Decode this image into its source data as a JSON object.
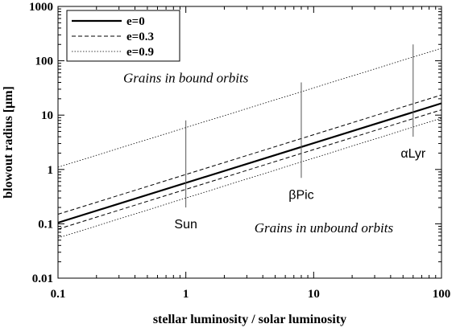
{
  "chart_data": {
    "type": "line",
    "xlabel": "stellar luminosity / solar luminosity",
    "ylabel": "blowout radius [μm]",
    "x_scale": "log",
    "y_scale": "log",
    "xlim": [
      0.1,
      100
    ],
    "ylim": [
      0.01,
      1000
    ],
    "x_ticks": [
      {
        "value": 0.1,
        "label": "0.1"
      },
      {
        "value": 1,
        "label": "1"
      },
      {
        "value": 10,
        "label": "10"
      },
      {
        "value": 100,
        "label": "100"
      }
    ],
    "y_ticks": [
      {
        "value": 0.01,
        "label": "0.01"
      },
      {
        "value": 0.1,
        "label": "0.1"
      },
      {
        "value": 1,
        "label": "1"
      },
      {
        "value": 10,
        "label": "10"
      },
      {
        "value": 100,
        "label": "100"
      },
      {
        "value": 1000,
        "label": "1000"
      }
    ],
    "legend_position": "top-left",
    "series": [
      {
        "name": "e=0",
        "style": "solid",
        "width": 2.2,
        "x": [
          0.1,
          100
        ],
        "y": [
          0.105,
          16.5
        ]
      },
      {
        "name": "e=0.3",
        "style": "dashed",
        "width": 1.0,
        "x": [
          0.1,
          100
        ],
        "y": [
          0.15,
          23.5
        ]
      },
      {
        "name": "e=0.3",
        "style": "dashed",
        "width": 1.0,
        "show_in_legend": false,
        "x": [
          0.1,
          100
        ],
        "y": [
          0.08,
          12.5
        ]
      },
      {
        "name": "e=0.9",
        "style": "dotted",
        "width": 0.8,
        "x": [
          0.1,
          100
        ],
        "y": [
          1.1,
          170
        ]
      },
      {
        "name": "e=0.9",
        "style": "dotted",
        "width": 0.8,
        "show_in_legend": false,
        "x": [
          0.1,
          100
        ],
        "y": [
          0.055,
          8.8
        ]
      }
    ],
    "stars": [
      {
        "label": "Sun",
        "x": 1,
        "y_range": [
          0.2,
          8
        ]
      },
      {
        "label": "βPic",
        "x": 8,
        "y_range": [
          0.7,
          40
        ]
      },
      {
        "label": "αLyr",
        "x": 60,
        "y_range": [
          4,
          200
        ]
      }
    ],
    "annotations": [
      {
        "text": "Grains in bound orbits",
        "x": 1,
        "y": 40
      },
      {
        "text": "Grains in unbound orbits",
        "x": 12,
        "y": 0.07
      }
    ]
  }
}
